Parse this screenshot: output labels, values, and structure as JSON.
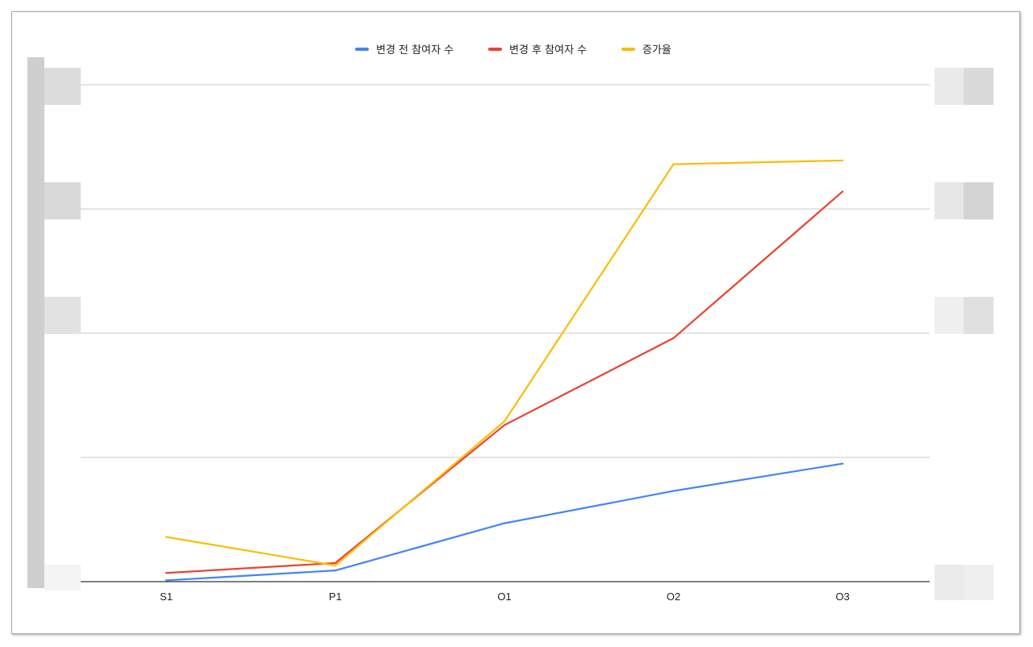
{
  "chart_data": {
    "type": "line",
    "categories": [
      "S1",
      "P1",
      "O1",
      "O2",
      "O3"
    ],
    "series": [
      {
        "name": "변경 전 참여자 수",
        "color": "#4285f4",
        "values": [
          1,
          9,
          47,
          73,
          95
        ]
      },
      {
        "name": "변경 후 참여자 수",
        "color": "#ea4335",
        "values": [
          7,
          15,
          126,
          196,
          314
        ]
      },
      {
        "name": "증가율",
        "color": "#fbbc04",
        "values": [
          36,
          13,
          129,
          336,
          339
        ]
      }
    ],
    "ylim": [
      0,
      400
    ],
    "grid": true,
    "legend_position": "top",
    "axis_labels_visible": false
  }
}
